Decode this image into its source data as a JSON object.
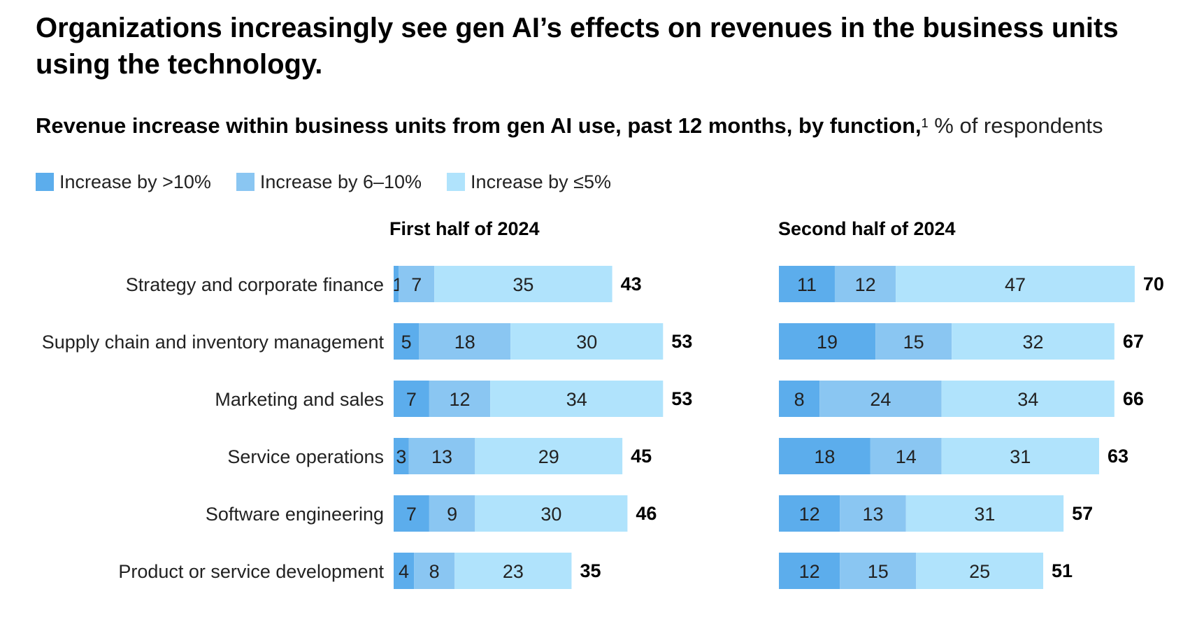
{
  "title": "Organizations increasingly see gen AI’s effects on revenues in the business units using the technology.",
  "subtitle": {
    "main": "Revenue increase within business units from gen AI use, past 12 months, by function,",
    "footnote_marker": "1",
    "unit": " % of respondents"
  },
  "legend": [
    {
      "label": "Increase by >10%",
      "color": "#5cadec"
    },
    {
      "label": "Increase by 6–10%",
      "color": "#8ac6f2"
    },
    {
      "label": "Increase by ≤5%",
      "color": "#b0e3fc"
    }
  ],
  "chart_data": {
    "type": "bar",
    "orientation": "horizontal",
    "stacked": true,
    "categories": [
      "Strategy and corporate finance",
      "Supply chain and inventory management",
      "Marketing and sales",
      "Service operations",
      "Software engineering",
      "Product or service development"
    ],
    "panels": [
      {
        "title": "First half of 2024",
        "series": [
          {
            "name": "Increase by >10%",
            "values": [
              1,
              5,
              7,
              3,
              7,
              4
            ]
          },
          {
            "name": "Increase by 6–10%",
            "values": [
              7,
              18,
              12,
              13,
              9,
              8
            ]
          },
          {
            "name": "Increase by ≤5%",
            "values": [
              35,
              30,
              34,
              29,
              30,
              23
            ]
          }
        ],
        "totals": [
          43,
          53,
          53,
          45,
          46,
          35
        ]
      },
      {
        "title": "Second half of 2024",
        "series": [
          {
            "name": "Increase by >10%",
            "values": [
              11,
              19,
              8,
              18,
              12,
              12
            ]
          },
          {
            "name": "Increase by 6–10%",
            "values": [
              12,
              15,
              24,
              14,
              13,
              15
            ]
          },
          {
            "name": "Increase by ≤5%",
            "values": [
              47,
              32,
              34,
              31,
              31,
              25
            ]
          }
        ],
        "totals": [
          70,
          67,
          66,
          63,
          57,
          51
        ]
      }
    ],
    "xlim": [
      0,
      70
    ]
  }
}
